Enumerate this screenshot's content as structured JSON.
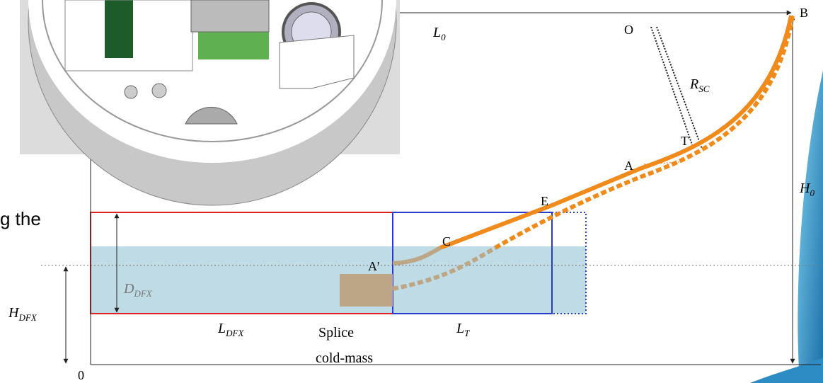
{
  "slide_text": "g the",
  "labels": {
    "L0": {
      "symbol": "L",
      "subscript": "0"
    },
    "O": {
      "symbol": "O"
    },
    "B": {
      "symbol": "B"
    },
    "RSC": {
      "symbol": "R",
      "subscript": "SC"
    },
    "T": {
      "symbol": "T"
    },
    "A": {
      "symbol": "A"
    },
    "E": {
      "symbol": "E"
    },
    "H0": {
      "symbol": "H",
      "subscript": "0"
    },
    "C": {
      "symbol": "C"
    },
    "A_prime": {
      "symbol": "A'"
    },
    "DDFX": {
      "symbol": "D",
      "subscript": "DFX"
    },
    "HDFX": {
      "symbol": "H",
      "subscript": "DFX"
    },
    "LDFX": {
      "symbol": "L",
      "subscript": "DFX"
    },
    "LT": {
      "symbol": "L",
      "subscript": "T"
    },
    "origin": {
      "symbol": "0"
    }
  },
  "splice_label": [
    "Splice",
    "cold-mass"
  ]
}
